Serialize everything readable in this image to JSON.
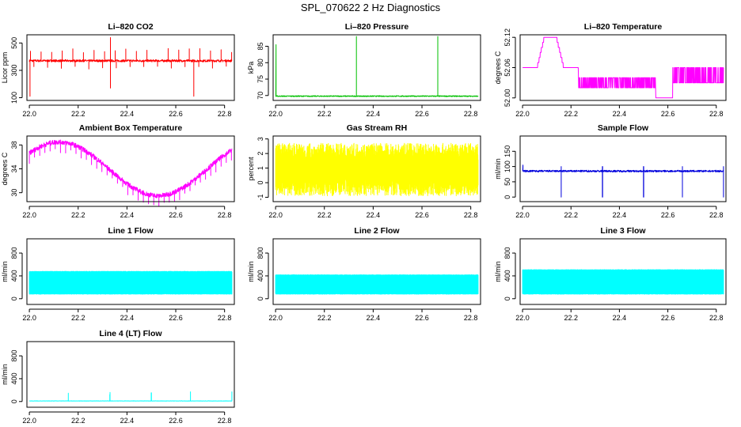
{
  "page": {
    "title": "SPL_070622  2 Hz Diagnostics"
  },
  "xaxis": {
    "ticks": [
      22.0,
      22.2,
      22.4,
      22.6,
      22.8
    ],
    "tick_labels": [
      "22.0",
      "22.2",
      "22.4",
      "22.6",
      "22.8"
    ],
    "range": [
      21.99,
      22.84
    ]
  },
  "chart_data": [
    {
      "type": "line",
      "title": "Li–820 CO2",
      "ylabel": "Licor ppm",
      "color": "#ff0000",
      "yticks": [
        100,
        300,
        500
      ],
      "ylim": [
        80,
        560
      ],
      "signal": "co2",
      "base": 370,
      "noise": 8,
      "spike_lo": 110,
      "spike_hi": 540
    },
    {
      "type": "line",
      "title": "Li–820 Pressure",
      "ylabel": "kPa",
      "color": "#00c000",
      "yticks": [
        70,
        75,
        80,
        85
      ],
      "ylim": [
        68.5,
        88.5
      ],
      "signal": "pressure",
      "base": 69.8,
      "noise": 0.15,
      "spike_hi": 88
    },
    {
      "type": "line",
      "title": "Li–820 Temperature",
      "ylabel": "degrees C",
      "color": "#ff00ff",
      "yticks": [
        52.0,
        52.06,
        52.12
      ],
      "ytick_labels": [
        "52.00",
        "52.06",
        "52.12"
      ],
      "ylim": [
        51.995,
        52.125
      ],
      "signal": "ltemp"
    },
    {
      "type": "line",
      "title": "Ambient Box Temperature",
      "ylabel": "degrees C",
      "color": "#ff00ff",
      "yticks": [
        30,
        34,
        38
      ],
      "ylim": [
        28.5,
        39.5
      ],
      "signal": "ambient"
    },
    {
      "type": "line",
      "title": "Gas Stream RH",
      "ylabel": "percent",
      "color": "#ffff00",
      "yticks": [
        -1,
        0,
        1,
        2,
        3
      ],
      "ylim": [
        -1.3,
        3.2
      ],
      "signal": "rh"
    },
    {
      "type": "line",
      "title": "Sample Flow",
      "ylabel": "ml/min",
      "color": "#0000dd",
      "yticks": [
        0,
        50,
        100,
        150
      ],
      "ylim": [
        -15,
        200
      ],
      "signal": "sample",
      "base": 85,
      "noise": 3
    },
    {
      "type": "line",
      "title": "Line 1 Flow",
      "ylabel": "ml/min",
      "color": "#00ffff",
      "yticks": [
        0,
        400,
        800
      ],
      "ylim": [
        -100,
        1050
      ],
      "signal": "band",
      "band_lo": 80,
      "band_hi": 480
    },
    {
      "type": "line",
      "title": "Line 2 Flow",
      "ylabel": "ml/min",
      "color": "#00ffff",
      "yticks": [
        0,
        400,
        800
      ],
      "ylim": [
        -100,
        1050
      ],
      "signal": "band",
      "band_lo": 80,
      "band_hi": 420
    },
    {
      "type": "line",
      "title": "Line 3 Flow",
      "ylabel": "ml/min",
      "color": "#00ffff",
      "yticks": [
        0,
        400,
        800
      ],
      "ylim": [
        -100,
        1050
      ],
      "signal": "band",
      "band_lo": 80,
      "band_hi": 510
    },
    {
      "type": "line",
      "title": "Line 4 (LT) Flow",
      "ylabel": "ml/min",
      "color": "#00ffff",
      "yticks": [
        0,
        400,
        800
      ],
      "ylim": [
        -100,
        1050
      ],
      "signal": "line4",
      "base": 10
    }
  ]
}
